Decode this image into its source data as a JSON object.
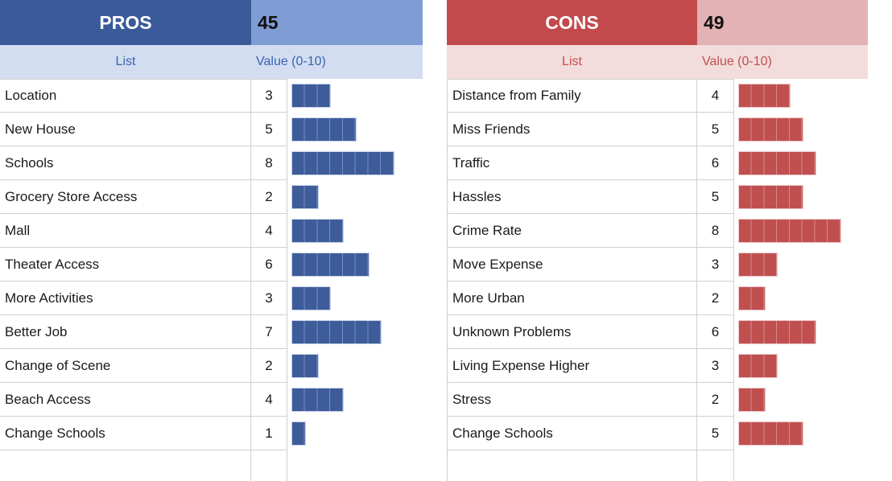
{
  "pros": {
    "title": "PROS",
    "total": 45,
    "columns": {
      "list": "List",
      "value": "Value (0-10)"
    },
    "items": [
      {
        "label": "Location",
        "value": 3
      },
      {
        "label": "New House",
        "value": 5
      },
      {
        "label": "Schools",
        "value": 8
      },
      {
        "label": "Grocery Store Access",
        "value": 2
      },
      {
        "label": "Mall",
        "value": 4
      },
      {
        "label": "Theater Access",
        "value": 6
      },
      {
        "label": "More Activities",
        "value": 3
      },
      {
        "label": "Better Job",
        "value": 7
      },
      {
        "label": "Change of Scene",
        "value": 2
      },
      {
        "label": "Beach Access",
        "value": 4
      },
      {
        "label": "Change Schools",
        "value": 1
      }
    ],
    "colors": {
      "header_bg": "#3a5a9a",
      "total_bg": "#7f9cd4",
      "subheader_bg": "#d3ddf1",
      "subheader_text": "#3a64ae",
      "bar_fill": "#3d5c99",
      "bar_border": "#c9d4ea",
      "bar_divider": "#7a8fc0"
    }
  },
  "cons": {
    "title": "CONS",
    "total": 49,
    "columns": {
      "list": "List",
      "value": "Value (0-10)"
    },
    "items": [
      {
        "label": "Distance from Family",
        "value": 4
      },
      {
        "label": "Miss Friends",
        "value": 5
      },
      {
        "label": "Traffic",
        "value": 6
      },
      {
        "label": "Hassles",
        "value": 5
      },
      {
        "label": "Crime Rate",
        "value": 8
      },
      {
        "label": "Move Expense",
        "value": 3
      },
      {
        "label": "More Urban",
        "value": 2
      },
      {
        "label": "Unknown Problems",
        "value": 6
      },
      {
        "label": "Living Expense Higher",
        "value": 3
      },
      {
        "label": "Stress",
        "value": 2
      },
      {
        "label": "Change Schools",
        "value": 5
      }
    ],
    "colors": {
      "header_bg": "#c24a4c",
      "total_bg": "#e3b2b4",
      "subheader_bg": "#f3dcdc",
      "subheader_text": "#c0504d",
      "bar_fill": "#c0504f",
      "bar_border": "#ecc6c8",
      "bar_divider": "#d58a8c"
    }
  },
  "chart_data": [
    {
      "type": "bar",
      "orientation": "horizontal",
      "title": "PROS",
      "total": 45,
      "categories": [
        "Location",
        "New House",
        "Schools",
        "Grocery Store Access",
        "Mall",
        "Theater Access",
        "More Activities",
        "Better Job",
        "Change of Scene",
        "Beach Access",
        "Change Schools"
      ],
      "values": [
        3,
        5,
        8,
        2,
        4,
        6,
        3,
        7,
        2,
        4,
        1
      ],
      "value_axis_label": "Value (0-10)",
      "value_range": [
        0,
        10
      ],
      "bar_color": "#3d5c99"
    },
    {
      "type": "bar",
      "orientation": "horizontal",
      "title": "CONS",
      "total": 49,
      "categories": [
        "Distance from Family",
        "Miss Friends",
        "Traffic",
        "Hassles",
        "Crime Rate",
        "Move Expense",
        "More Urban",
        "Unknown Problems",
        "Living Expense Higher",
        "Stress",
        "Change Schools"
      ],
      "values": [
        4,
        5,
        6,
        5,
        8,
        3,
        2,
        6,
        3,
        2,
        5
      ],
      "value_axis_label": "Value (0-10)",
      "value_range": [
        0,
        10
      ],
      "bar_color": "#c0504f"
    }
  ]
}
